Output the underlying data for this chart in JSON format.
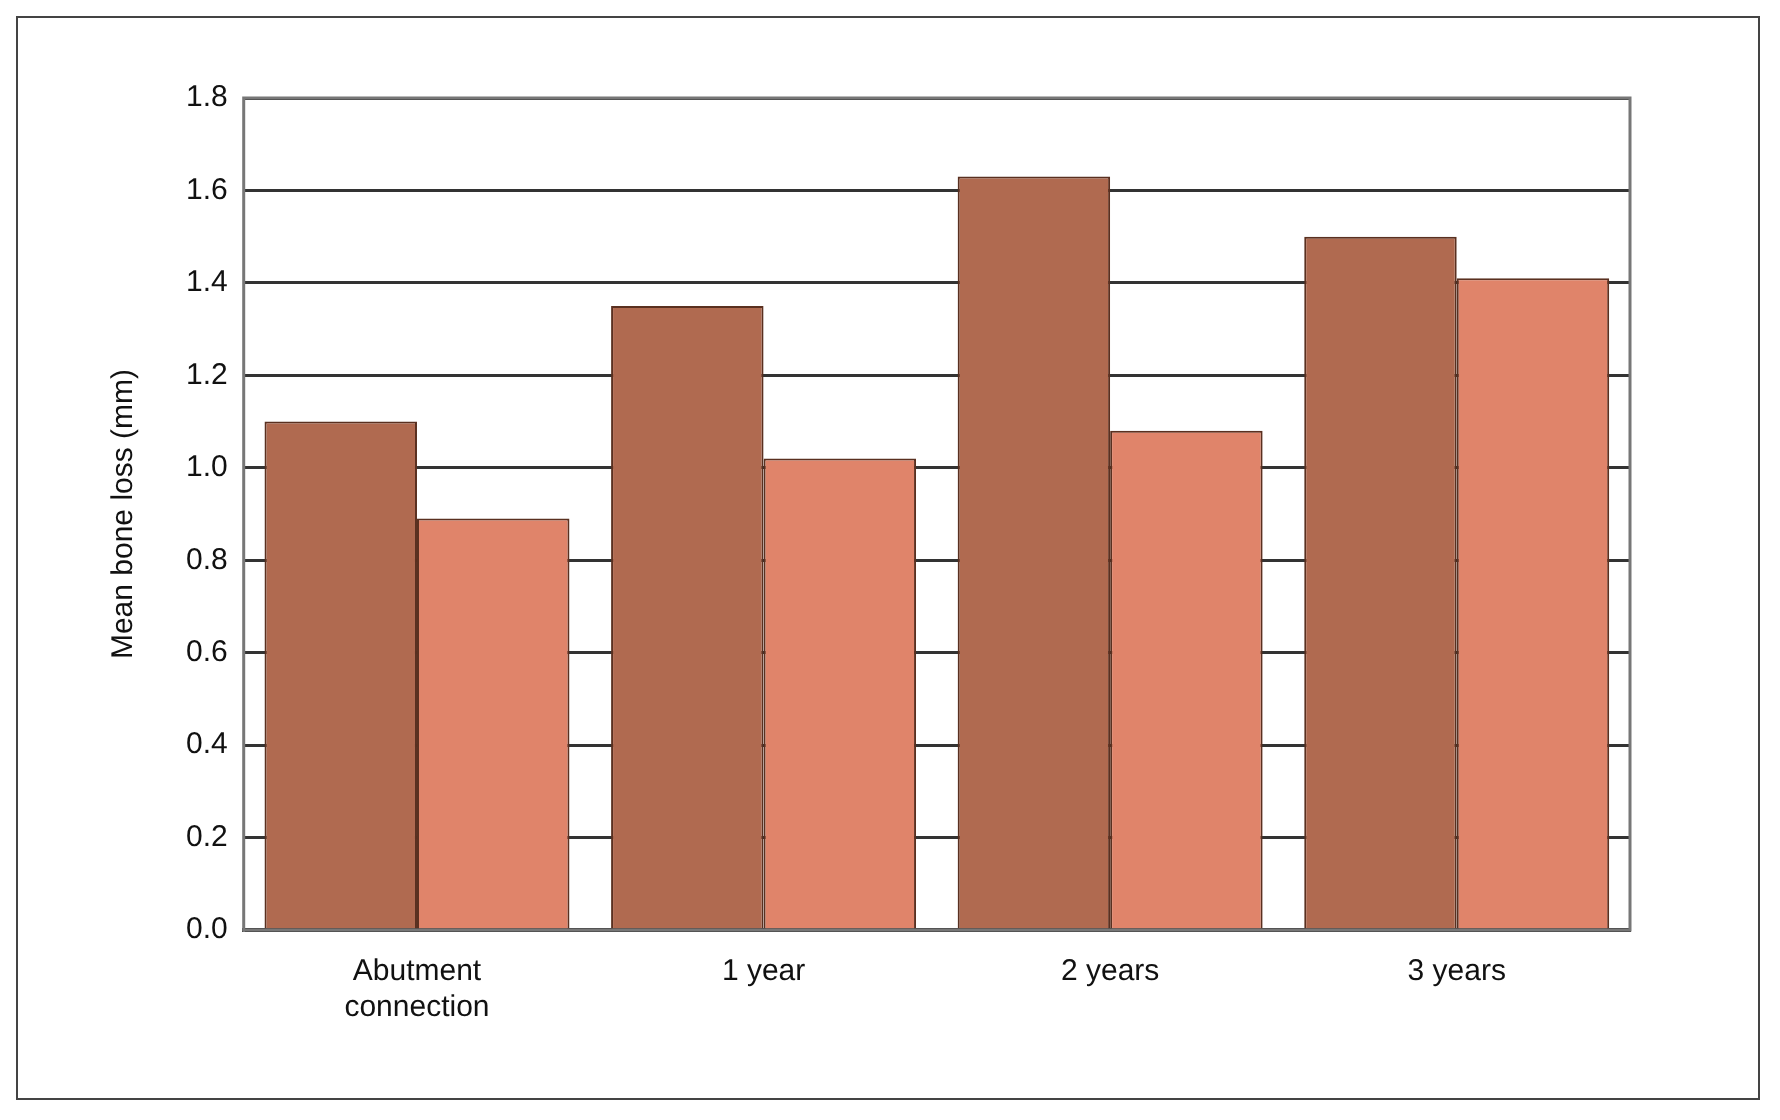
{
  "chart_data": {
    "type": "bar",
    "ylabel": "Mean bone loss (mm)",
    "categories": [
      "Abutment connection",
      "1 year",
      "2 years",
      "3 years"
    ],
    "series": [
      {
        "color": "#b06a50",
        "values": [
          1.1,
          1.35,
          1.63,
          1.5
        ]
      },
      {
        "color": "#e0846a",
        "values": [
          0.89,
          1.02,
          1.08,
          1.41
        ]
      }
    ],
    "ylim": [
      0,
      1.8
    ],
    "yticks": [
      {
        "value": 0,
        "label": "0.0"
      },
      {
        "value": 0.2,
        "label": "0.2"
      },
      {
        "value": 0.4,
        "label": "0.4"
      },
      {
        "value": 0.6,
        "label": "0.6"
      },
      {
        "value": 0.8,
        "label": "0.8"
      },
      {
        "value": 1,
        "label": "1.0"
      },
      {
        "value": 1.2,
        "label": "1.2"
      },
      {
        "value": 1.4,
        "label": "1.4"
      },
      {
        "value": 1.6,
        "label": "1.6"
      },
      {
        "value": 1.8,
        "label": "1.8"
      }
    ],
    "grid": "y",
    "legend": false
  }
}
